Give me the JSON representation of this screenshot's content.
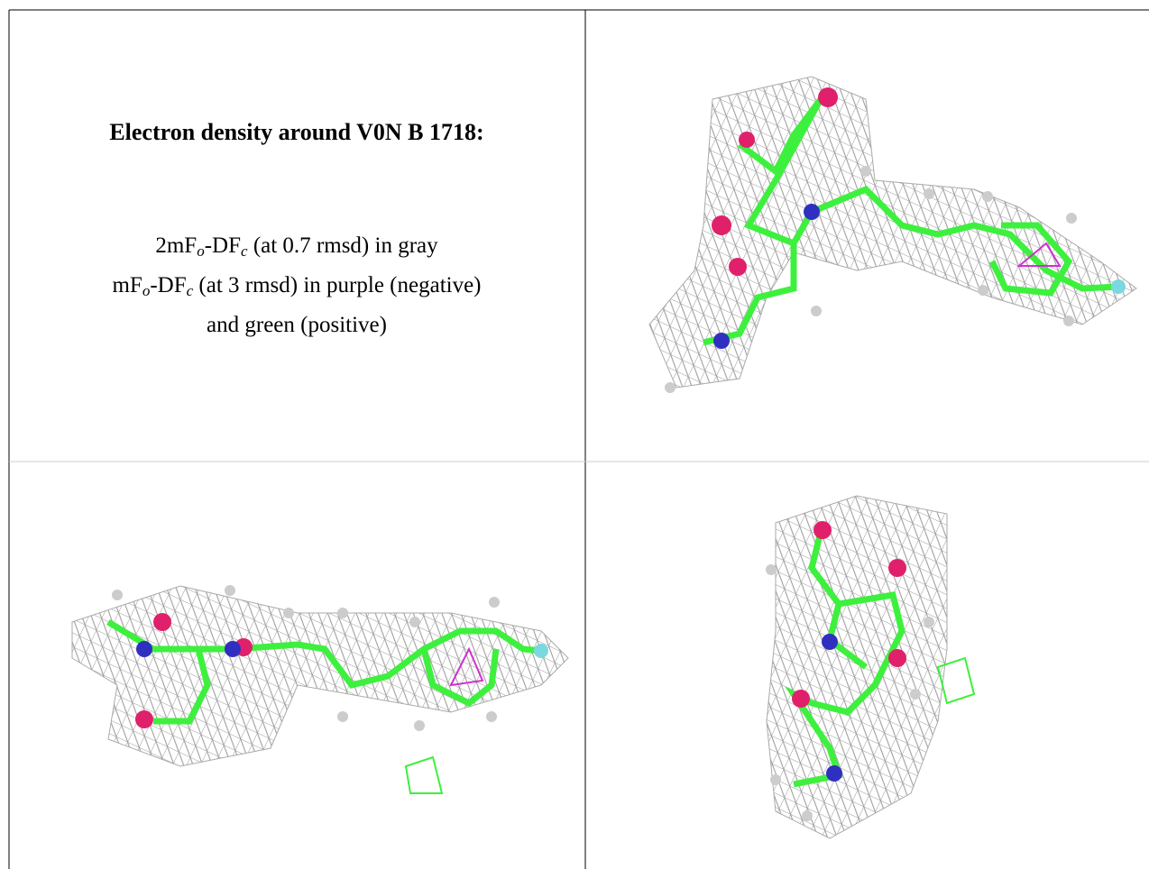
{
  "caption": {
    "title": "Electron density around V0N B 1718:",
    "lines": [
      [
        "2mF",
        "o",
        "-DF",
        "c",
        " (at 0.7 rmsd) in gray"
      ],
      [
        "mF",
        "o",
        "-DF",
        "c",
        " (at 3 rmsd) in purple (negative)"
      ],
      [
        "and green (positive)"
      ]
    ]
  }
}
